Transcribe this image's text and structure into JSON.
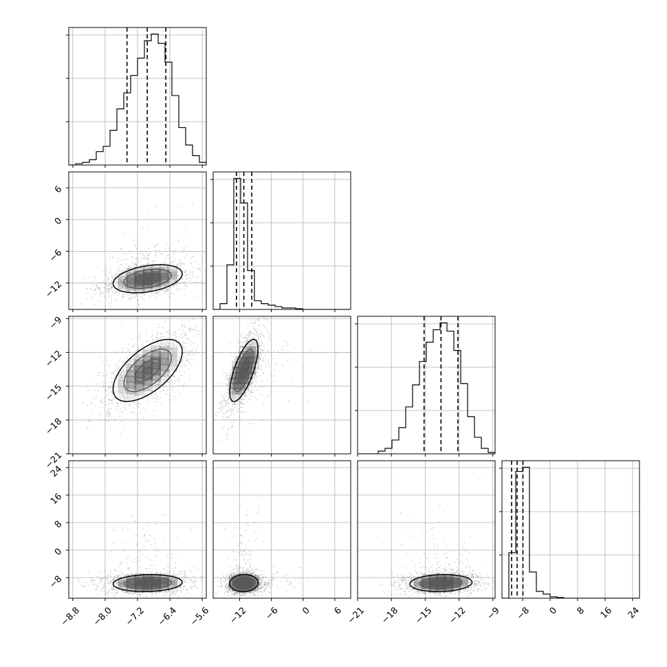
{
  "chart_data": {
    "type": "corner",
    "params": [
      {
        "ticks": [
          -8.8,
          -8.0,
          -7.2,
          -6.4,
          -5.6
        ],
        "tick_labels": [
          "−8.8",
          "−8.0",
          "−7.2",
          "−6.4",
          "−5.6"
        ],
        "range": [
          -8.9,
          -5.5
        ],
        "quantiles": [
          -7.46,
          -6.96,
          -6.5
        ],
        "hist": {
          "edges": [
            -8.9,
            -8.73,
            -8.56,
            -8.39,
            -8.22,
            -8.05,
            -7.88,
            -7.71,
            -7.54,
            -7.37,
            -7.2,
            -7.03,
            -6.86,
            -6.69,
            -6.52,
            -6.35,
            -6.18,
            -6.01,
            -5.84,
            -5.67,
            -5.5
          ],
          "heights": [
            0.0,
            0.01,
            0.02,
            0.04,
            0.1,
            0.14,
            0.26,
            0.42,
            0.54,
            0.67,
            0.8,
            0.93,
            0.98,
            0.91,
            0.77,
            0.52,
            0.28,
            0.15,
            0.07,
            0.02
          ]
        },
        "center": -6.95,
        "sd": 0.45
      },
      {
        "ticks": [
          -12,
          -6,
          0,
          6
        ],
        "tick_labels": [
          "−12",
          "−6",
          "0",
          "6"
        ],
        "range": [
          -17,
          9
        ],
        "quantiles": [
          -12.6,
          -11.2,
          -9.7
        ],
        "hist": {
          "edges": [
            -17.0,
            -15.7,
            -14.4,
            -13.1,
            -11.8,
            -10.5,
            -9.2,
            -7.9,
            -6.6,
            -5.3,
            -4.0,
            -2.7,
            -1.4,
            -0.1,
            1.2,
            2.5,
            3.8,
            5.1,
            6.4,
            7.7,
            9.0
          ],
          "heights": [
            0.0,
            0.04,
            0.31,
            0.91,
            0.74,
            0.27,
            0.06,
            0.04,
            0.03,
            0.02,
            0.01,
            0.01,
            0.005,
            0.0,
            0.0,
            0.0,
            0.0,
            0.0,
            0.0,
            0.0
          ]
        },
        "center": -11.2,
        "sd": 1.4
      },
      {
        "ticks": [
          -21,
          -18,
          -15,
          -12,
          -9
        ],
        "tick_labels": [
          "−21",
          "−18",
          "−15",
          "−12",
          "−9"
        ],
        "range": [
          -21,
          -8.8
        ],
        "quantiles": [
          -15.1,
          -13.6,
          -12.1
        ],
        "hist": {
          "edges": [
            -21.0,
            -20.39,
            -19.78,
            -19.17,
            -18.56,
            -17.95,
            -17.34,
            -16.73,
            -16.12,
            -15.51,
            -14.9,
            -14.29,
            -13.68,
            -13.07,
            -12.46,
            -11.85,
            -11.24,
            -10.63,
            -10.02,
            -9.41,
            -8.8
          ],
          "heights": [
            0.0,
            0.0,
            0.0,
            0.02,
            0.04,
            0.1,
            0.19,
            0.34,
            0.5,
            0.67,
            0.81,
            0.9,
            0.95,
            0.89,
            0.75,
            0.51,
            0.27,
            0.12,
            0.04,
            0.01
          ]
        },
        "center": -13.6,
        "sd": 1.45
      },
      {
        "ticks": [
          -8,
          0,
          8,
          16,
          24
        ],
        "tick_labels": [
          "−8",
          "0",
          "8",
          "16",
          "24"
        ],
        "range": [
          -14,
          26
        ],
        "quantiles": [
          -11.2,
          -9.6,
          -7.9
        ],
        "hist": {
          "edges": [
            -14.0,
            -12.0,
            -10.0,
            -8.0,
            -6.0,
            -4.0,
            -2.0,
            0.0,
            2.0,
            4.0,
            6.0,
            8.0,
            10.0,
            12.0,
            14.0,
            16.0,
            18.0,
            20.0,
            22.0,
            24.0,
            26.0
          ],
          "heights": [
            0.0,
            0.33,
            0.92,
            0.95,
            0.19,
            0.05,
            0.03,
            0.01,
            0.005,
            0.0,
            0.0,
            0.0,
            0.0,
            0.0,
            0.0,
            0.0,
            0.0,
            0.0,
            0.0,
            0.0
          ]
        },
        "center": -9.6,
        "sd": 1.3
      }
    ],
    "correlation": [
      [
        1.0,
        0.35,
        0.6,
        0.1
      ],
      [
        0.35,
        1.0,
        0.7,
        0.05
      ],
      [
        0.6,
        0.7,
        1.0,
        0.1
      ],
      [
        0.1,
        0.05,
        0.1,
        1.0
      ]
    ],
    "grid": true,
    "colors": {
      "hist_line": "#000000",
      "density_fill": "#000000",
      "scatter": "#555555",
      "grid": "#b0b0b0"
    }
  }
}
